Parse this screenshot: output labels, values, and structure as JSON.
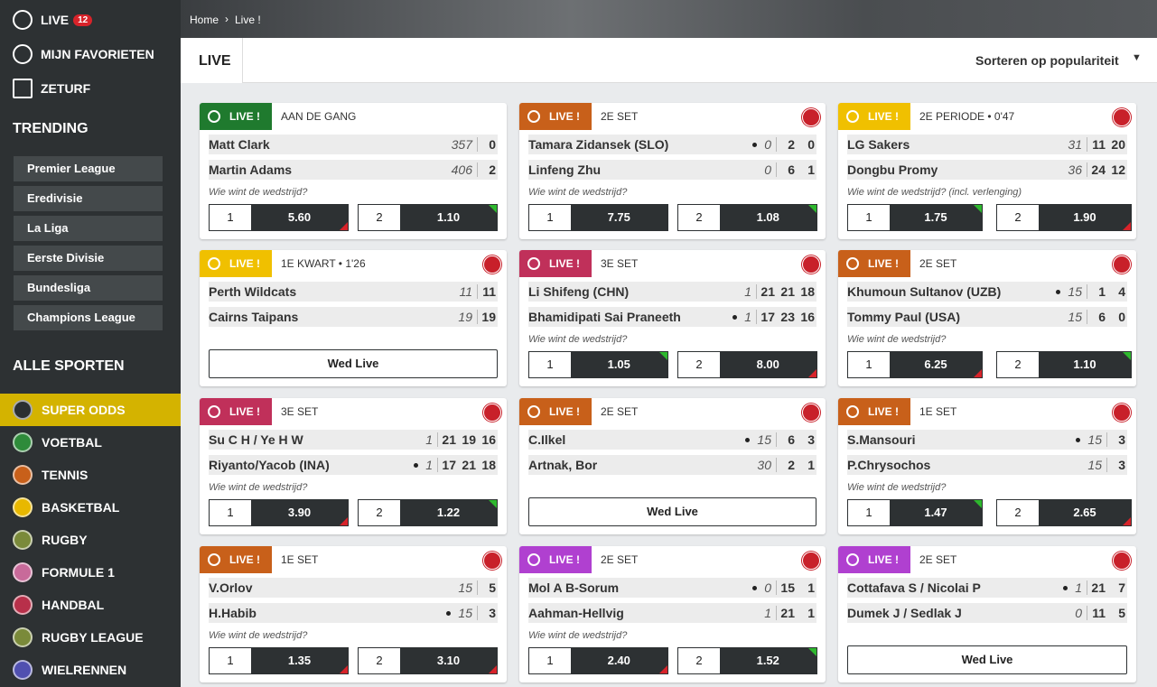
{
  "sidebar": {
    "top_links": [
      {
        "label": "LIVE",
        "badge": "12"
      },
      {
        "label": "MIJN FAVORIETEN"
      },
      {
        "label": "ZETURF"
      }
    ],
    "trending_title": "TRENDING",
    "trending": [
      "Premier League",
      "Eredivisie",
      "La Liga",
      "Eerste Divisie",
      "Bundesliga",
      "Champions League"
    ],
    "sports_title": "ALLE SPORTEN",
    "sports": [
      {
        "label": "SUPER ODDS",
        "color": "#2b2f31",
        "active": true
      },
      {
        "label": "VOETBAL",
        "color": "#2e8b3a"
      },
      {
        "label": "TENNIS",
        "color": "#c8601a"
      },
      {
        "label": "BASKETBAL",
        "color": "#e8b800"
      },
      {
        "label": "RUGBY",
        "color": "#7a8a3a"
      },
      {
        "label": "FORMULE 1",
        "color": "#c86a9a"
      },
      {
        "label": "HANDBAL",
        "color": "#b8304a"
      },
      {
        "label": "RUGBY LEAGUE",
        "color": "#7a8a3a"
      },
      {
        "label": "WIELRENNEN",
        "color": "#5050b0"
      }
    ]
  },
  "header": {
    "breadcrumb": [
      "Home",
      "Live !"
    ],
    "tab": "LIVE",
    "sort": "Sorteren op populariteit"
  },
  "events": [
    {
      "color": "#1f7a2e",
      "status": "LIVE !",
      "period": "AAN DE GANG",
      "super_out": false,
      "players": [
        {
          "name": "Matt Clark",
          "serve": false,
          "scores": [
            "357",
            "0"
          ]
        },
        {
          "name": "Martin Adams",
          "serve": false,
          "scores": [
            "406",
            "2"
          ]
        }
      ],
      "question": "Wie wint de wedstrijd?",
      "odds": [
        {
          "label": "1",
          "value": "5.60",
          "trend": "down"
        },
        {
          "label": "2",
          "value": "1.10",
          "trend": "up"
        }
      ]
    },
    {
      "color": "#c8601a",
      "status": "LIVE !",
      "period": "2E SET",
      "super_out": true,
      "players": [
        {
          "name": "Tamara Zidansek (SLO)",
          "serve": true,
          "scores": [
            "0",
            "2",
            "0"
          ]
        },
        {
          "name": "Linfeng Zhu",
          "serve": false,
          "scores": [
            "0",
            "6",
            "1"
          ]
        }
      ],
      "question": "Wie wint de wedstrijd?",
      "odds": [
        {
          "label": "1",
          "value": "7.75",
          "trend": "none"
        },
        {
          "label": "2",
          "value": "1.08",
          "trend": "up"
        }
      ]
    },
    {
      "color": "#f0c000",
      "status": "LIVE !",
      "period": "2E PERIODE • 0'47",
      "super_out": true,
      "players": [
        {
          "name": "LG Sakers",
          "serve": false,
          "scores": [
            "31",
            "11",
            "20"
          ]
        },
        {
          "name": "Dongbu Promy",
          "serve": false,
          "scores": [
            "36",
            "24",
            "12"
          ]
        }
      ],
      "question": "Wie wint de wedstrijd? (incl. verlenging)",
      "odds": [
        {
          "label": "1",
          "value": "1.75",
          "trend": "up"
        },
        {
          "label": "2",
          "value": "1.90",
          "trend": "down"
        }
      ]
    },
    {
      "color": "#f0c000",
      "status": "LIVE !",
      "period": "1E KWART • 1'26",
      "super_out": true,
      "players": [
        {
          "name": "Perth Wildcats",
          "serve": false,
          "scores": [
            "11",
            "11"
          ]
        },
        {
          "name": "Cairns Taipans",
          "serve": false,
          "scores": [
            "19",
            "19"
          ]
        }
      ],
      "button": "Wed Live"
    },
    {
      "color": "#c0305a",
      "status": "LIVE !",
      "period": "3E SET",
      "super_out": true,
      "players": [
        {
          "name": "Li Shifeng (CHN)",
          "serve": false,
          "scores": [
            "1",
            "21",
            "21",
            "18"
          ]
        },
        {
          "name": "Bhamidipati Sai Praneeth",
          "serve": true,
          "scores": [
            "1",
            "17",
            "23",
            "16"
          ]
        }
      ],
      "question": "Wie wint de wedstrijd?",
      "odds": [
        {
          "label": "1",
          "value": "1.05",
          "trend": "up"
        },
        {
          "label": "2",
          "value": "8.00",
          "trend": "down"
        }
      ]
    },
    {
      "color": "#c8601a",
      "status": "LIVE !",
      "period": "2E SET",
      "super_out": true,
      "players": [
        {
          "name": "Khumoun Sultanov (UZB)",
          "serve": true,
          "scores": [
            "15",
            "1",
            "4"
          ]
        },
        {
          "name": "Tommy Paul (USA)",
          "serve": false,
          "scores": [
            "15",
            "6",
            "0"
          ]
        }
      ],
      "question": "Wie wint de wedstrijd?",
      "odds": [
        {
          "label": "1",
          "value": "6.25",
          "trend": "down"
        },
        {
          "label": "2",
          "value": "1.10",
          "trend": "up"
        }
      ]
    },
    {
      "color": "#c0305a",
      "status": "LIVE !",
      "period": "3E SET",
      "super_out": true,
      "players": [
        {
          "name": "Su C H / Ye H W",
          "serve": false,
          "scores": [
            "1",
            "21",
            "19",
            "16"
          ]
        },
        {
          "name": "Riyanto/Yacob (INA)",
          "serve": true,
          "scores": [
            "1",
            "17",
            "21",
            "18"
          ]
        }
      ],
      "question": "Wie wint de wedstrijd?",
      "odds": [
        {
          "label": "1",
          "value": "3.90",
          "trend": "down"
        },
        {
          "label": "2",
          "value": "1.22",
          "trend": "up"
        }
      ]
    },
    {
      "color": "#c8601a",
      "status": "LIVE !",
      "period": "2E SET",
      "super_out": true,
      "players": [
        {
          "name": "C.Ilkel",
          "serve": true,
          "scores": [
            "15",
            "6",
            "3"
          ]
        },
        {
          "name": "Artnak, Bor",
          "serve": false,
          "scores": [
            "30",
            "2",
            "1"
          ]
        }
      ],
      "button": "Wed Live"
    },
    {
      "color": "#c8601a",
      "status": "LIVE !",
      "period": "1E SET",
      "super_out": true,
      "players": [
        {
          "name": "S.Mansouri",
          "serve": true,
          "scores": [
            "15",
            "3"
          ]
        },
        {
          "name": "P.Chrysochos",
          "serve": false,
          "scores": [
            "15",
            "3"
          ]
        }
      ],
      "question": "Wie wint de wedstrijd?",
      "odds": [
        {
          "label": "1",
          "value": "1.47",
          "trend": "up"
        },
        {
          "label": "2",
          "value": "2.65",
          "trend": "down"
        }
      ]
    },
    {
      "color": "#c8601a",
      "status": "LIVE !",
      "period": "1E SET",
      "super_out": true,
      "players": [
        {
          "name": "V.Orlov",
          "serve": false,
          "scores": [
            "15",
            "5"
          ]
        },
        {
          "name": "H.Habib",
          "serve": true,
          "scores": [
            "15",
            "3"
          ]
        }
      ],
      "question": "Wie wint de wedstrijd?",
      "odds": [
        {
          "label": "1",
          "value": "1.35",
          "trend": "down"
        },
        {
          "label": "2",
          "value": "3.10",
          "trend": "down"
        }
      ]
    },
    {
      "color": "#b040d0",
      "status": "LIVE !",
      "period": "2E SET",
      "super_out": true,
      "players": [
        {
          "name": "Mol A B-Sorum",
          "serve": true,
          "scores": [
            "0",
            "15",
            "1"
          ]
        },
        {
          "name": "Aahman-Hellvig",
          "serve": false,
          "scores": [
            "1",
            "21",
            "1"
          ]
        }
      ],
      "question": "Wie wint de wedstrijd?",
      "odds": [
        {
          "label": "1",
          "value": "2.40",
          "trend": "down"
        },
        {
          "label": "2",
          "value": "1.52",
          "trend": "up"
        }
      ]
    },
    {
      "color": "#b040d0",
      "status": "LIVE !",
      "period": "2E SET",
      "super_out": true,
      "players": [
        {
          "name": "Cottafava S / Nicolai P",
          "serve": true,
          "scores": [
            "1",
            "21",
            "7"
          ]
        },
        {
          "name": "Dumek J / Sedlak J",
          "serve": false,
          "scores": [
            "0",
            "11",
            "5"
          ]
        }
      ],
      "button": "Wed Live"
    }
  ]
}
